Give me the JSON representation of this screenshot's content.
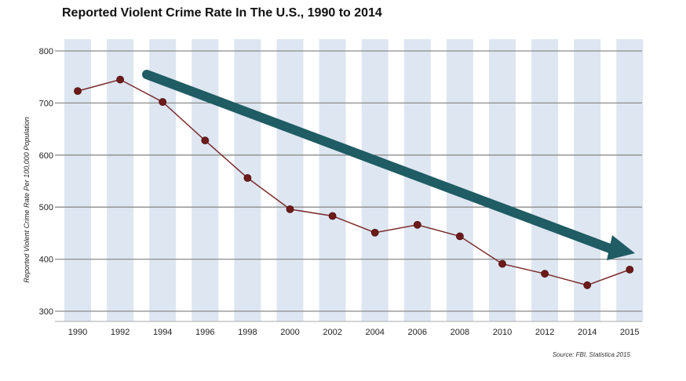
{
  "chart_data": {
    "type": "line",
    "title": "Reported Violent Crime Rate In The U.S., 1990 to 2014",
    "ylabel": "Reported Violent Crime Rate Per 100,000 Population",
    "xlabel": "",
    "categories": [
      "1990",
      "1992",
      "1994",
      "1996",
      "1998",
      "2000",
      "2002",
      "2004",
      "2006",
      "2008",
      "2010",
      "2012",
      "2014",
      "2015"
    ],
    "yticks": [
      "300",
      "400",
      "500",
      "600",
      "700",
      "800"
    ],
    "ylim": [
      300,
      800
    ],
    "series": [
      {
        "values": [
          723,
          745,
          702,
          628,
          556,
          496,
          483,
          451,
          466,
          444,
          391,
          372,
          350,
          380
        ]
      }
    ],
    "annotation": "downward-trend-arrow",
    "source": "Source: FBI, Statistica 2015",
    "grid": "horizontal",
    "colors": {
      "column_band": "#dde6f1",
      "gridline": "#8c8c8c",
      "line": "#7b2b2b",
      "marker": "#6f1a1a",
      "arrow": "#1f5c63"
    }
  }
}
